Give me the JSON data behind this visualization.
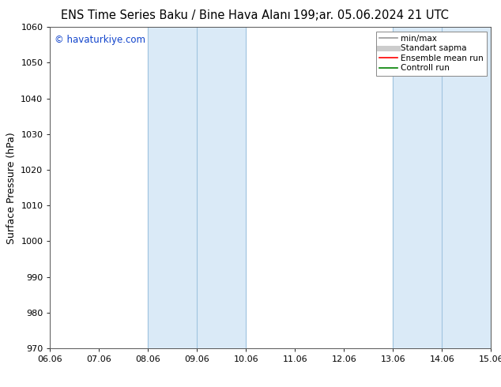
{
  "title_left": "ENS Time Series Baku / Bine Hava Alanı",
  "title_right": "199;ar. 05.06.2024 21 UTC",
  "ylabel": "Surface Pressure (hPa)",
  "ylim": [
    970,
    1060
  ],
  "yticks": [
    970,
    980,
    990,
    1000,
    1010,
    1020,
    1030,
    1040,
    1050,
    1060
  ],
  "xlim_start": 0,
  "xlim_end": 9,
  "xtick_labels": [
    "06.06",
    "07.06",
    "08.06",
    "09.06",
    "10.06",
    "11.06",
    "12.06",
    "13.06",
    "14.06",
    "15.06"
  ],
  "shaded_bands": [
    {
      "x_start": 2.0,
      "x_end": 3.0
    },
    {
      "x_start": 3.0,
      "x_end": 4.0
    },
    {
      "x_start": 7.0,
      "x_end": 8.0
    },
    {
      "x_start": 8.0,
      "x_end": 9.0
    }
  ],
  "band_color": "#daeaf7",
  "band_edge_color": "#a0c4e0",
  "watermark": "© havaturkiye.com",
  "watermark_color": "#1144cc",
  "legend_entries": [
    {
      "label": "min/max",
      "color": "#999999",
      "lw": 1.2
    },
    {
      "label": "Standart sapma",
      "color": "#cccccc",
      "lw": 5
    },
    {
      "label": "Ensemble mean run",
      "color": "red",
      "lw": 1.2
    },
    {
      "label": "Controll run",
      "color": "green",
      "lw": 1.2
    }
  ],
  "bg_color": "#ffffff",
  "title_fontsize": 10.5,
  "tick_fontsize": 8,
  "ylabel_fontsize": 9,
  "legend_fontsize": 7.5
}
